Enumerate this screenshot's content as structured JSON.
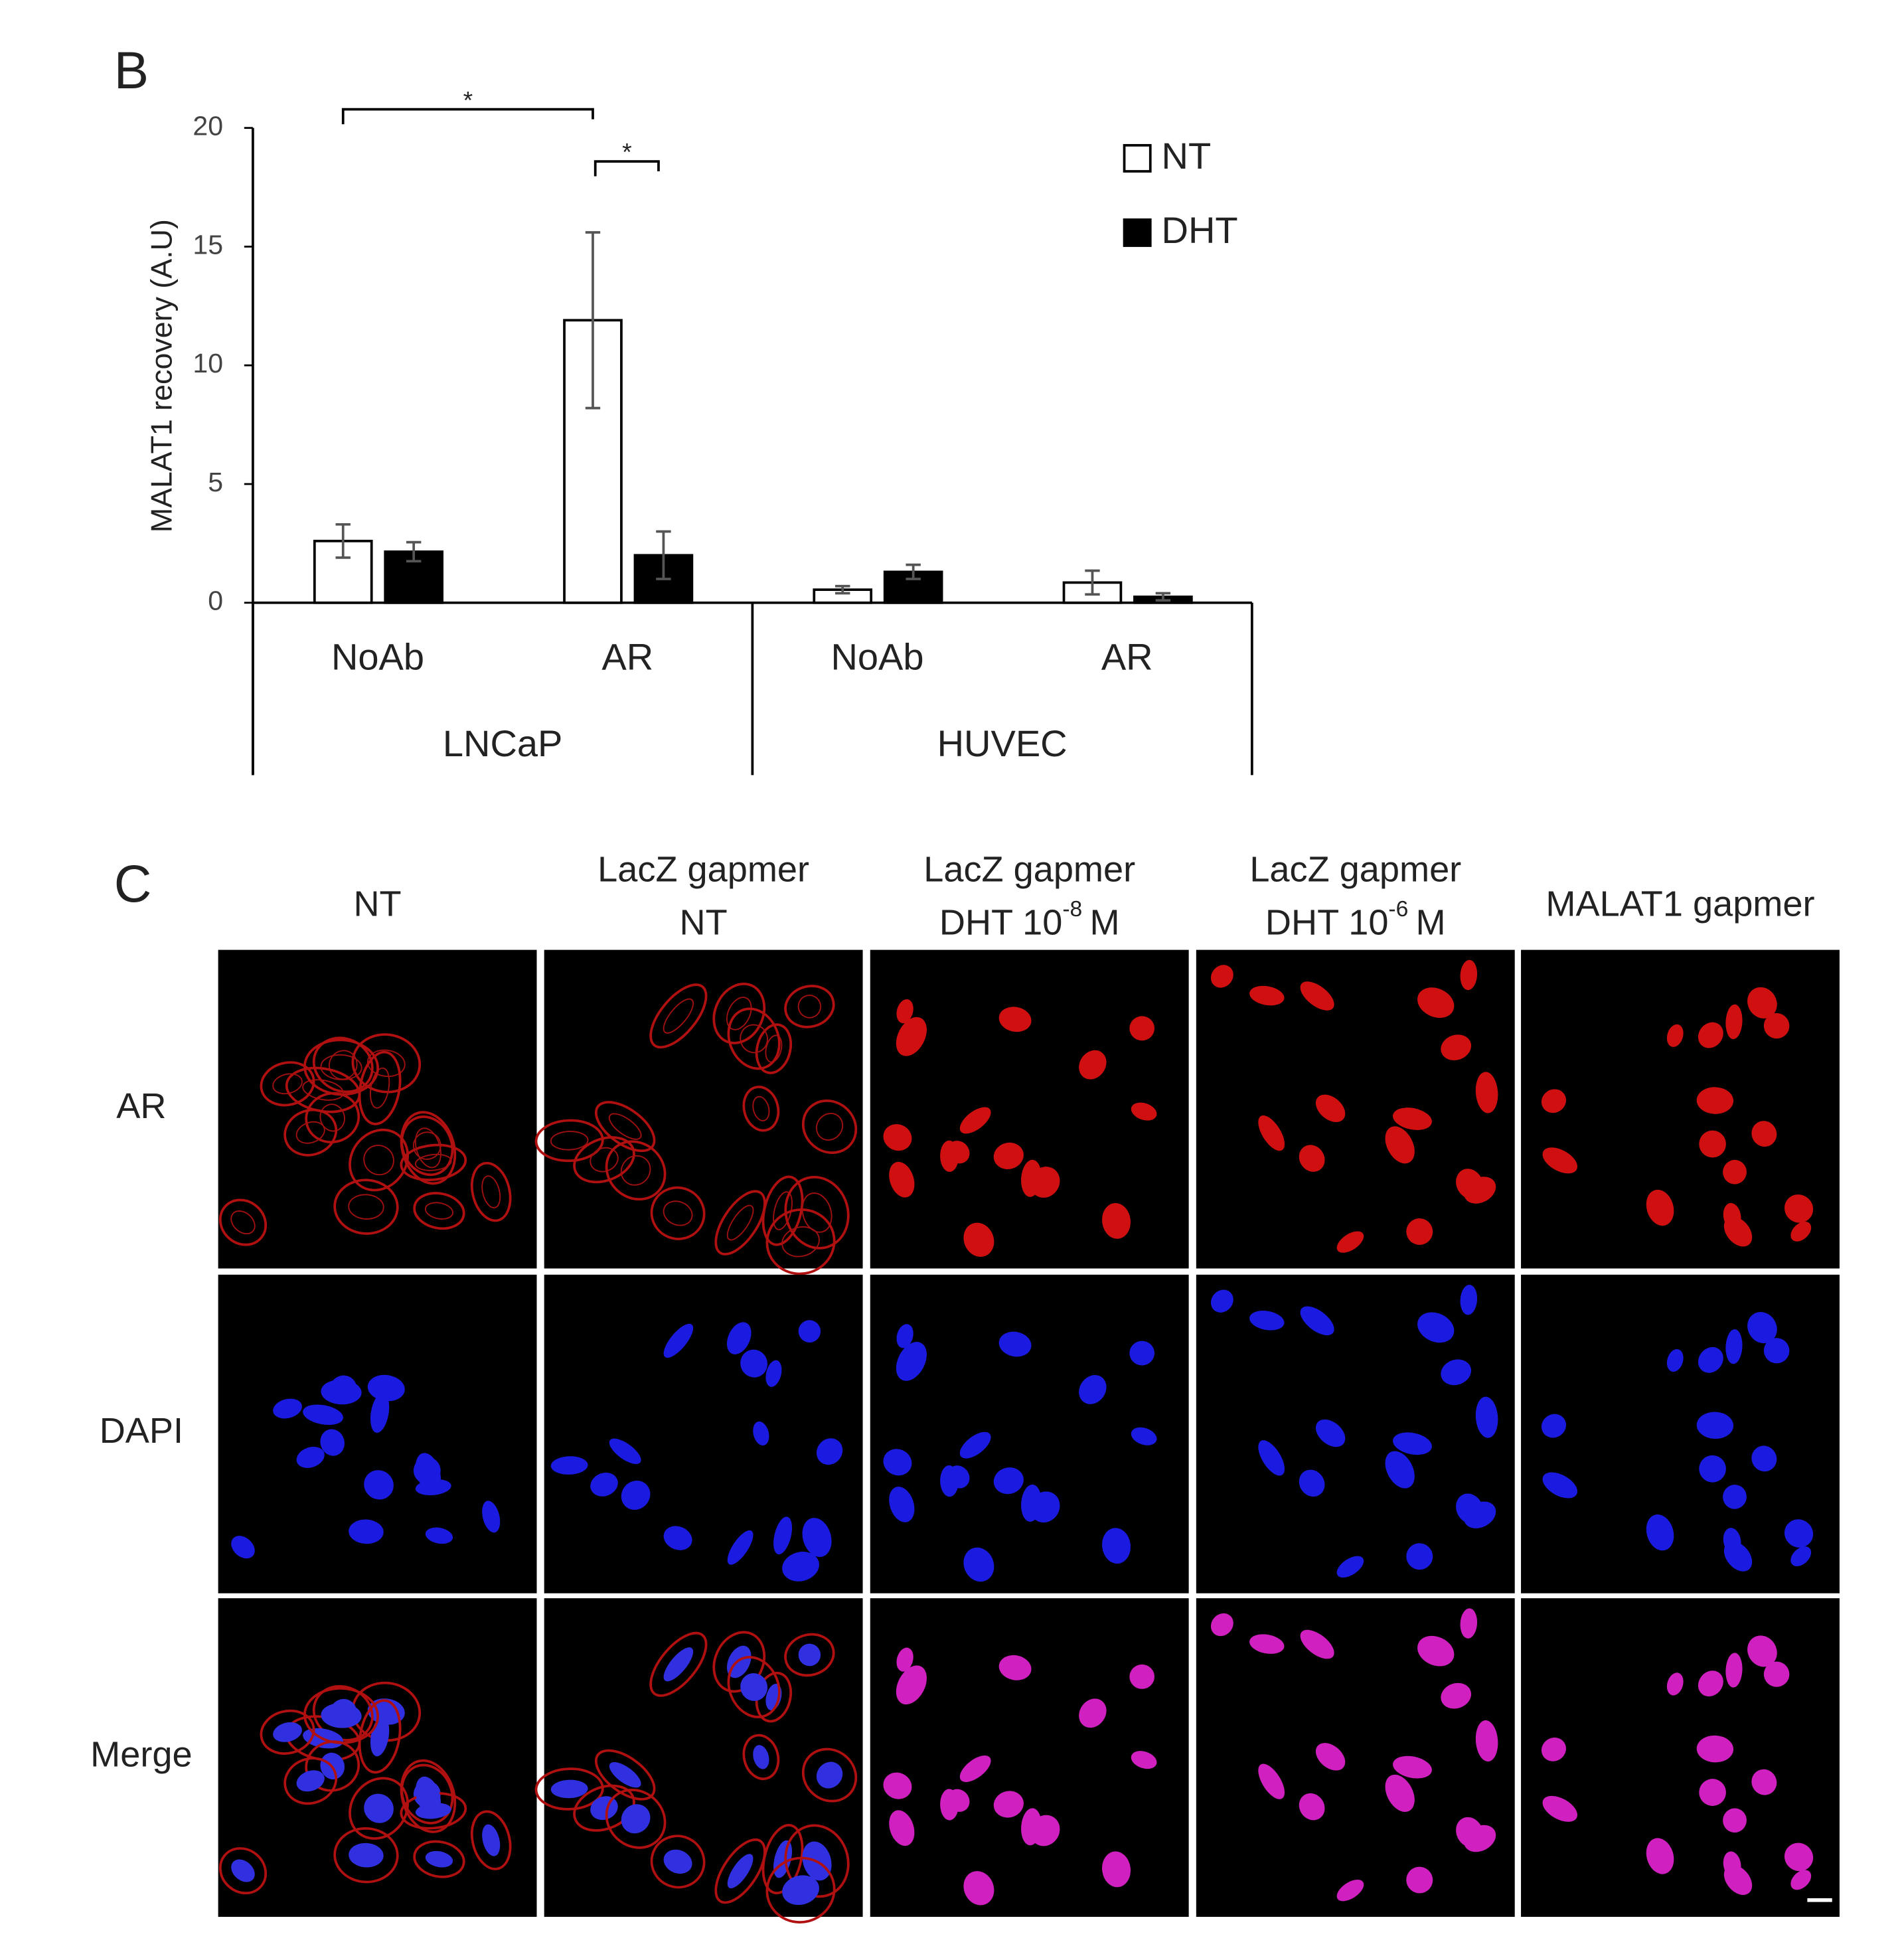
{
  "chart_data": {
    "type": "bar",
    "panel_label": "B",
    "ylabel": "MALAT1 recovery (A.U)",
    "categories": [
      "NoAb",
      "AR",
      "NoAb",
      "AR"
    ],
    "groups": [
      "LNCaP",
      "HUVEC"
    ],
    "series": [
      {
        "name": "NT",
        "color": "#ffffff",
        "values": [
          2.6,
          11.9,
          0.55,
          0.85
        ],
        "errors": [
          0.7,
          3.7,
          0.15,
          0.5
        ]
      },
      {
        "name": "DHT",
        "color": "#000000",
        "values": [
          2.15,
          2.0,
          1.3,
          0.25
        ],
        "errors": [
          0.4,
          1.0,
          0.3,
          0.15
        ]
      }
    ],
    "ylim": [
      0,
      20
    ],
    "yticks": [
      0,
      5,
      10,
      15,
      20
    ],
    "grid": false,
    "legend": "upper right",
    "annotations": [
      {
        "text": "*"
      },
      {
        "text": "*"
      }
    ]
  },
  "panel_c": {
    "panel_label": "C",
    "columns": [
      {
        "line1": "NT"
      },
      {
        "line1": "LacZ gapmer",
        "line2": "NT"
      },
      {
        "line1": "LacZ gapmer",
        "line2": {
          "base": "DHT 10",
          "sup": "-8",
          "unit": "M"
        }
      },
      {
        "line1": "LacZ gapmer",
        "line2": {
          "base": "DHT 10",
          "sup": "-6",
          "unit": "M"
        }
      },
      {
        "line1": "MALAT1 gapmer"
      }
    ],
    "rows": [
      "AR",
      "DAPI",
      "Merge"
    ]
  }
}
